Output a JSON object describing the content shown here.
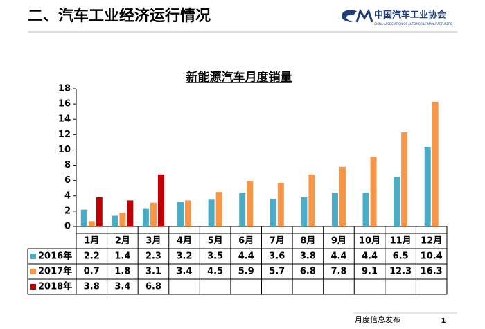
{
  "header": {
    "title": "二、汽车工业经济运行情况",
    "org": "中国汽车工业协会",
    "org_en": "CHINA ASSOCIATION OF AUTOMOBILE MANUFACTURERS"
  },
  "chart_data": {
    "type": "bar",
    "title": "新能源汽车月度销量",
    "categories": [
      "1月",
      "2月",
      "3月",
      "4月",
      "5月",
      "6月",
      "7月",
      "8月",
      "9月",
      "10月",
      "11月",
      "12月"
    ],
    "series": [
      {
        "name": "2016年",
        "color": "#4bacc6",
        "values": [
          2.2,
          1.4,
          2.3,
          3.2,
          3.5,
          4.4,
          3.6,
          3.8,
          4.4,
          4.4,
          6.5,
          10.4
        ]
      },
      {
        "name": "2017年",
        "color": "#f79646",
        "values": [
          0.7,
          1.8,
          3.1,
          3.4,
          4.5,
          5.9,
          5.7,
          6.8,
          7.8,
          9.1,
          12.3,
          16.3
        ]
      },
      {
        "name": "2018年",
        "color": "#c00000",
        "values": [
          3.8,
          3.4,
          6.8,
          null,
          null,
          null,
          null,
          null,
          null,
          null,
          null,
          null
        ]
      }
    ],
    "ylim": [
      0,
      18
    ],
    "yticks": [
      0,
      2,
      4,
      6,
      8,
      10,
      12,
      14,
      16,
      18
    ],
    "grid": false
  },
  "footer": {
    "text": "月度信息发布",
    "page": "1"
  }
}
